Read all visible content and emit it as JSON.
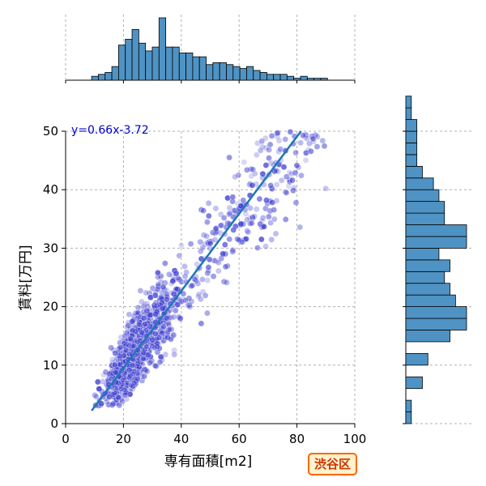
{
  "chart_data": {
    "type": "scatter",
    "xlabel": "専有面積[m2]",
    "ylabel": "賃料[万円]",
    "xlim": [
      0,
      100
    ],
    "ylim": [
      0,
      50
    ],
    "x_ticks": [
      0,
      20,
      40,
      60,
      80,
      100
    ],
    "y_ticks": [
      0,
      10,
      20,
      30,
      40,
      50
    ],
    "grid": true,
    "regression": {
      "slope": 0.66,
      "intercept": -3.72,
      "label": "y=0.66x-3.72",
      "color": "#1f77b4"
    },
    "scatter_color": "#3a3ad0",
    "hist_color": "#4f93c4",
    "scatter_summary": {
      "x_range": [
        7,
        97
      ],
      "y_range": [
        3,
        50
      ],
      "dense_region_x": [
        12,
        55
      ],
      "dense_region_y": [
        5,
        35
      ]
    },
    "x_histogram": {
      "bin_width": 2.33,
      "bins_start": 9,
      "counts": [
        2,
        3,
        4,
        7,
        18,
        21,
        26,
        19,
        15,
        17,
        32,
        17,
        17,
        14,
        14,
        12,
        12,
        8,
        9,
        9,
        8,
        7,
        6,
        7,
        5,
        4,
        3,
        3,
        3,
        2,
        1,
        2,
        1,
        1,
        1
      ]
    },
    "y_histogram": {
      "bin_width": 2,
      "bins_start": 0,
      "counts": [
        1,
        1,
        0,
        3,
        0,
        4,
        0,
        8,
        11,
        11,
        9,
        8,
        7,
        8,
        6,
        11,
        11,
        7,
        7,
        6,
        5,
        3,
        2,
        2,
        2,
        2,
        1,
        1
      ]
    },
    "badge": "渋谷区"
  }
}
